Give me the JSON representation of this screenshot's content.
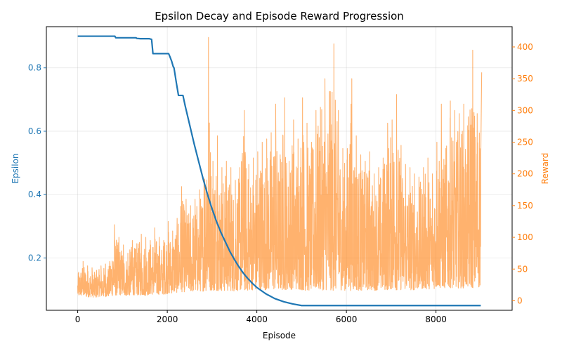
{
  "chart_data": {
    "type": "line",
    "title": "Epsilon Decay and Episode Reward Progression",
    "xlabel": "Episode",
    "ylabel_left": "Epsilon",
    "ylabel_right": "Reward",
    "xlim": [
      -700,
      9700
    ],
    "ylim_left": [
      0.035,
      0.93
    ],
    "ylim_right": [
      -15,
      432
    ],
    "x_ticks": [
      0,
      2000,
      4000,
      6000,
      8000
    ],
    "y_ticks_left": [
      0.2,
      0.4,
      0.6,
      0.8
    ],
    "y_ticks_right": [
      0,
      50,
      100,
      150,
      200,
      250,
      300,
      350,
      400
    ],
    "grid": true,
    "colors": {
      "epsilon": "#1f77b4",
      "reward": "#ff7f0e",
      "reward_alpha": 0.6
    },
    "series": [
      {
        "axis": "left",
        "x": [
          0,
          830,
          850,
          1300,
          1320,
          1400,
          1600,
          1650,
          1680,
          2030,
          2060,
          2100,
          2130,
          2150,
          2200,
          2250,
          2350,
          2400,
          2500,
          2600,
          2700,
          2800,
          2900,
          3000,
          3100,
          3200,
          3300,
          3400,
          3500,
          3600,
          3700,
          3800,
          3900,
          4000,
          4200,
          4400,
          4600,
          4800,
          5000,
          6000,
          7000,
          8000,
          9000
        ],
        "values": [
          0.9,
          0.9,
          0.895,
          0.895,
          0.893,
          0.892,
          0.892,
          0.89,
          0.845,
          0.845,
          0.835,
          0.82,
          0.805,
          0.8,
          0.755,
          0.713,
          0.713,
          0.68,
          0.62,
          0.56,
          0.505,
          0.45,
          0.4,
          0.355,
          0.315,
          0.28,
          0.25,
          0.22,
          0.195,
          0.172,
          0.152,
          0.135,
          0.12,
          0.107,
          0.087,
          0.072,
          0.062,
          0.055,
          0.05,
          0.05,
          0.05,
          0.05,
          0.05
        ]
      },
      {
        "axis": "right",
        "x": [
          0,
          100,
          200,
          300,
          400,
          500,
          600,
          700,
          800,
          900,
          1000,
          1100,
          1200,
          1300,
          1400,
          1500,
          1600,
          1700,
          1800,
          1900,
          2000,
          2100,
          2200,
          2300,
          2400,
          2500,
          2600,
          2700,
          2800,
          2900,
          3000,
          3100,
          3200,
          3300,
          3400,
          3500,
          3600,
          3700,
          3800,
          3900,
          4000,
          4100,
          4200,
          4300,
          4400,
          4500,
          4600,
          4700,
          4800,
          4900,
          5000,
          5100,
          5200,
          5300,
          5400,
          5500,
          5600,
          5700,
          5800,
          5900,
          6000,
          6100,
          6200,
          6300,
          6400,
          6500,
          6600,
          6700,
          6800,
          6900,
          7000,
          7100,
          7200,
          7300,
          7400,
          7500,
          7600,
          7700,
          7800,
          7900,
          8000,
          8100,
          8200,
          8300,
          8400,
          8500,
          8600,
          8700,
          8800,
          8900,
          9000
        ],
        "min": [
          7,
          8,
          6,
          6,
          5,
          7,
          6,
          7,
          8,
          9,
          9,
          8,
          9,
          9,
          9,
          8,
          10,
          10,
          10,
          10,
          11,
          12,
          13,
          14,
          14,
          15,
          14,
          15,
          15,
          16,
          16,
          16,
          16,
          15,
          16,
          15,
          16,
          16,
          16,
          17,
          16,
          17,
          17,
          17,
          17,
          17,
          17,
          18,
          18,
          18,
          17,
          16,
          16,
          17,
          16,
          17,
          17,
          16,
          17,
          17,
          16,
          16,
          17,
          16,
          17,
          17,
          16,
          17,
          17,
          17,
          18,
          17,
          17,
          18,
          17,
          17,
          18,
          19,
          18,
          19,
          19,
          20,
          20,
          20,
          21,
          20,
          20,
          20,
          20,
          21,
          21
        ],
        "max": [
          45,
          62,
          55,
          52,
          48,
          55,
          58,
          60,
          120,
          100,
          88,
          75,
          95,
          90,
          105,
          100,
          95,
          115,
          100,
          95,
          125,
          110,
          130,
          180,
          160,
          150,
          160,
          175,
          190,
          415,
          220,
          260,
          210,
          220,
          210,
          190,
          210,
          300,
          215,
          225,
          235,
          250,
          255,
          265,
          310,
          230,
          320,
          220,
          285,
          255,
          320,
          280,
          250,
          300,
          305,
          350,
          330,
          405,
          300,
          240,
          240,
          350,
          260,
          230,
          220,
          235,
          200,
          210,
          225,
          280,
          285,
          325,
          245,
          215,
          210,
          200,
          195,
          210,
          225,
          200,
          250,
          310,
          240,
          315,
          300,
          295,
          310,
          290,
          395,
          295,
          360
        ]
      }
    ]
  }
}
